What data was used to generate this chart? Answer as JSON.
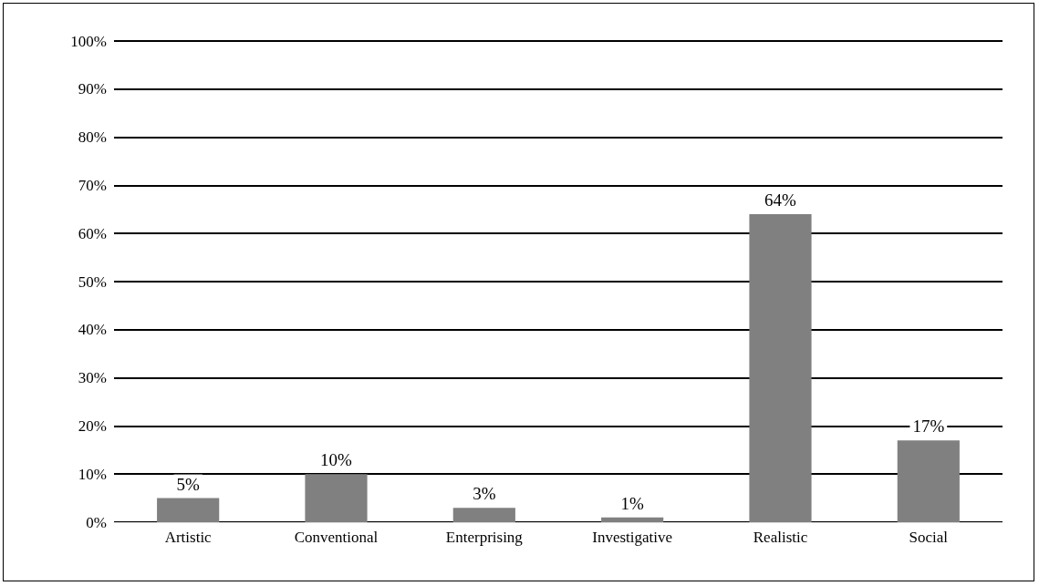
{
  "chart_data": {
    "type": "bar",
    "categories": [
      "Artistic",
      "Conventional",
      "Enterprising",
      "Investigative",
      "Realistic",
      "Social"
    ],
    "series": [
      {
        "color": "#808080",
        "values": [
          5,
          10,
          3,
          1,
          64,
          17
        ],
        "value_labels": [
          "5%",
          "10%",
          "3%",
          "1%",
          "64%",
          "17%"
        ]
      }
    ],
    "ylim": [
      0,
      100
    ],
    "yticks": [
      {
        "value": 0,
        "label": "0%"
      },
      {
        "value": 10,
        "label": "10%"
      },
      {
        "value": 20,
        "label": "20%"
      },
      {
        "value": 30,
        "label": "30%"
      },
      {
        "value": 40,
        "label": "40%"
      },
      {
        "value": 50,
        "label": "50%"
      },
      {
        "value": 60,
        "label": "60%"
      },
      {
        "value": 70,
        "label": "70%"
      },
      {
        "value": 80,
        "label": "80%"
      },
      {
        "value": 90,
        "label": "90%"
      },
      {
        "value": 100,
        "label": "100%"
      }
    ],
    "grid": "y"
  }
}
